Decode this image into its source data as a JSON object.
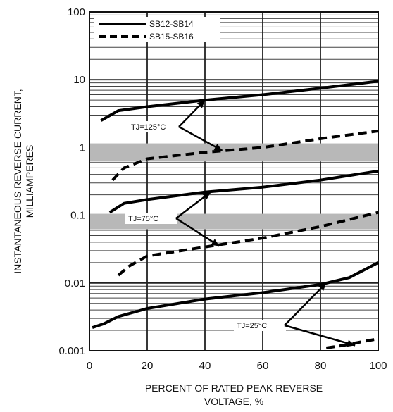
{
  "chart_data": {
    "type": "line",
    "title": "",
    "xlabel": "PERCENT OF RATED PEAK REVERSE VOLTAGE, %",
    "ylabel": "INSTANTANEOUS REVERSE CURRENT, MILLIAMPERES",
    "xlim": [
      0,
      100
    ],
    "ylim": [
      0.001,
      100
    ],
    "yscale": "log",
    "x_ticks": [
      0,
      20,
      40,
      60,
      80,
      100
    ],
    "x_tick_labels": [
      "0",
      "20",
      "40",
      "60",
      "80",
      "100"
    ],
    "y_ticks": [
      0.001,
      0.01,
      0.1,
      1,
      10,
      100
    ],
    "y_tick_labels": [
      "0.001",
      "0.01",
      "0.1",
      "1",
      "10",
      "100"
    ],
    "grid": true,
    "legend": {
      "position": "top-left",
      "entries": [
        {
          "label": "SB12-SB14",
          "style": "solid",
          "color": "#000000"
        },
        {
          "label": "SB15-SB16",
          "style": "dashed",
          "color": "#000000"
        }
      ]
    },
    "series": [
      {
        "legend": "SB12-SB14",
        "style": "solid",
        "condition": "125",
        "x": [
          4,
          10,
          20,
          40,
          60,
          80,
          100
        ],
        "y": [
          2.5,
          3.5,
          4.0,
          5.0,
          6.0,
          7.5,
          9.5
        ]
      },
      {
        "legend": "SB15-SB16",
        "style": "dashed",
        "condition": "125",
        "x": [
          8,
          12,
          20,
          40,
          60,
          80,
          100
        ],
        "y": [
          0.33,
          0.5,
          0.68,
          0.85,
          1.0,
          1.35,
          1.75
        ]
      },
      {
        "legend": "SB12-SB14",
        "style": "solid",
        "condition": "75",
        "x": [
          7,
          12,
          20,
          40,
          60,
          80,
          100
        ],
        "y": [
          0.11,
          0.15,
          0.17,
          0.22,
          0.26,
          0.33,
          0.45
        ]
      },
      {
        "legend": "SB15-SB16",
        "style": "dashed",
        "condition": "75",
        "x": [
          10,
          14,
          20,
          40,
          60,
          80,
          100
        ],
        "y": [
          0.013,
          0.018,
          0.025,
          0.034,
          0.046,
          0.068,
          0.11
        ]
      },
      {
        "legend": "SB12-SB14",
        "style": "solid",
        "condition": "25",
        "x": [
          1,
          5,
          10,
          20,
          40,
          60,
          80,
          90,
          100
        ],
        "y": [
          0.0022,
          0.0025,
          0.0032,
          0.0042,
          0.0058,
          0.0072,
          0.0095,
          0.012,
          0.02
        ]
      },
      {
        "legend": "SB15-SB16",
        "style": "dashed",
        "condition": "25",
        "x": [
          82,
          88,
          92,
          100
        ],
        "y": [
          0.0011,
          0.0012,
          0.0013,
          0.0015
        ]
      }
    ],
    "annotations": [
      {
        "text": "TJ=125°C",
        "arrow_targets": [
          [
            40,
            5.0
          ],
          [
            46,
            0.9
          ]
        ]
      },
      {
        "text": "TJ=75°C",
        "arrow_targets": [
          [
            42,
            0.22
          ],
          [
            45,
            0.035
          ]
        ]
      },
      {
        "text": "TJ=25°C",
        "arrow_targets": [
          [
            82,
            0.01
          ],
          [
            92,
            0.0012
          ]
        ]
      }
    ]
  }
}
